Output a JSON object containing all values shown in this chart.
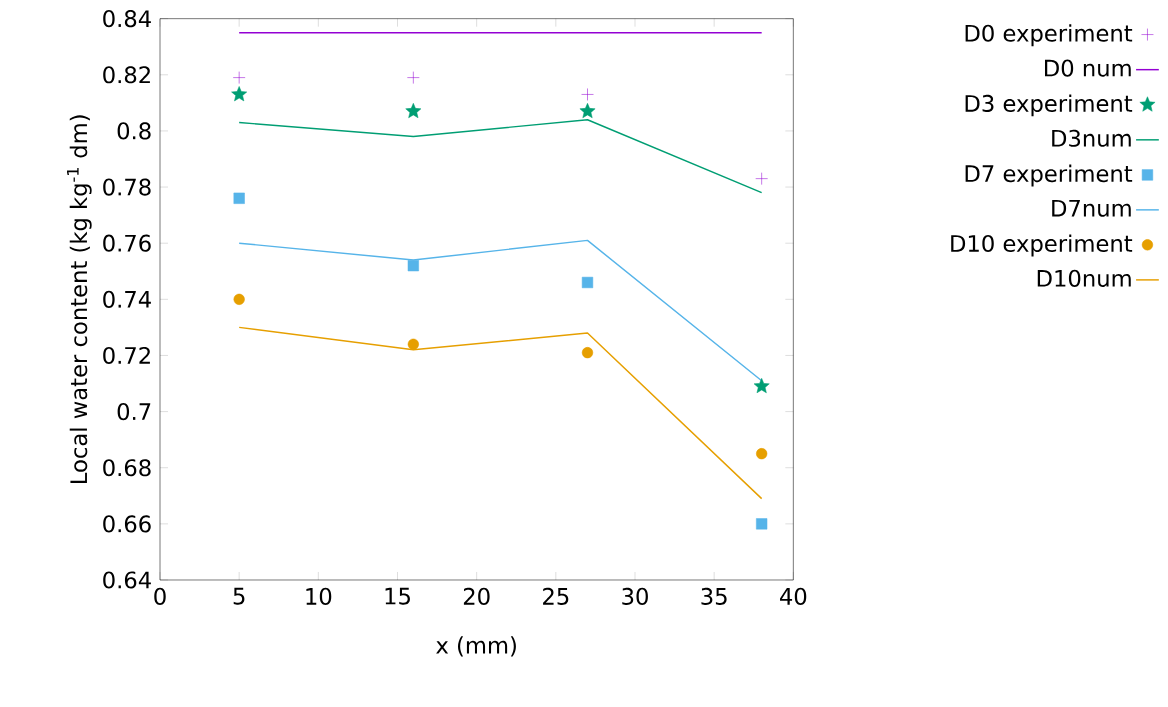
{
  "chart_data": {
    "type": "line",
    "xlabel": "x (mm)",
    "ylabel": "Local water content (kg kg$^{-1}$ dm)",
    "x": [
      5,
      16,
      27,
      38
    ],
    "xlim": [
      0,
      40
    ],
    "xticks": [
      0,
      5,
      10,
      15,
      20,
      25,
      30,
      35,
      40
    ],
    "ylim": [
      0.64,
      0.84
    ],
    "yticks": [
      0.64,
      0.66,
      0.68,
      0.7,
      0.72,
      0.74,
      0.76,
      0.78,
      0.8,
      0.82,
      0.84
    ],
    "grid": false,
    "legend": "right",
    "series": [
      {
        "name": "D0 experiment",
        "type": "scatter",
        "marker": "cross",
        "color": "#9400d3",
        "values": [
          0.819,
          0.819,
          0.813,
          0.783
        ]
      },
      {
        "name": "D0 num",
        "marker": "none",
        "color": "#9400d3",
        "values": [
          0.835,
          0.835,
          0.835,
          0.835
        ]
      },
      {
        "name": "D3 experiment",
        "type": "scatter",
        "marker": "star",
        "color": "#009e73",
        "values": [
          0.813,
          0.807,
          0.807,
          0.709
        ]
      },
      {
        "name": "D3num",
        "marker": "none",
        "color": "#009e73",
        "values": [
          0.803,
          0.798,
          0.804,
          0.778
        ]
      },
      {
        "name": "D7 experiment",
        "type": "scatter",
        "marker": "square",
        "color": "#56b4e9",
        "values": [
          0.776,
          0.752,
          0.746,
          0.66
        ]
      },
      {
        "name": "D7num",
        "marker": "none",
        "color": "#56b4e9",
        "values": [
          0.76,
          0.754,
          0.761,
          0.711
        ]
      },
      {
        "name": "D10 experiment",
        "type": "scatter",
        "marker": "circle",
        "color": "#e69f00",
        "values": [
          0.74,
          0.724,
          0.721,
          0.685
        ]
      },
      {
        "name": "D10num",
        "marker": "none",
        "color": "#e69f00",
        "values": [
          0.73,
          0.722,
          0.728,
          0.669
        ]
      }
    ]
  }
}
